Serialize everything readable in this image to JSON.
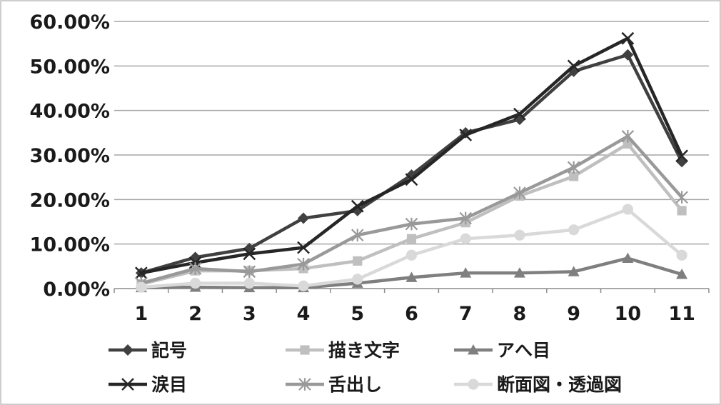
{
  "chart_data": {
    "type": "line",
    "title": "",
    "xlabel": "",
    "ylabel": "",
    "categories": [
      "1",
      "2",
      "3",
      "4",
      "5",
      "6",
      "7",
      "8",
      "9",
      "10",
      "11"
    ],
    "y_ticks": [
      "0.00%",
      "10.00%",
      "20.00%",
      "30.00%",
      "40.00%",
      "50.00%",
      "60.00%"
    ],
    "ylim": [
      0,
      60
    ],
    "grid": true,
    "legend_position": "bottom",
    "series": [
      {
        "name": "記号",
        "marker": "diamond",
        "color": "#404040",
        "values": [
          3.5,
          7.0,
          9.0,
          15.8,
          17.5,
          25.5,
          35.0,
          38.0,
          48.8,
          52.5,
          28.5
        ]
      },
      {
        "name": "描き文字",
        "marker": "square",
        "color": "#bfbfbf",
        "values": [
          1.0,
          4.0,
          4.0,
          4.5,
          6.2,
          11.2,
          14.8,
          20.8,
          25.2,
          32.5,
          17.5
        ]
      },
      {
        "name": "アへ目",
        "marker": "triangle",
        "color": "#7f7f7f",
        "values": [
          0.2,
          0.3,
          0.2,
          0.2,
          1.2,
          2.5,
          3.5,
          3.5,
          3.8,
          6.8,
          3.2
        ]
      },
      {
        "name": "涙目",
        "marker": "x",
        "color": "#262626",
        "values": [
          3.5,
          5.8,
          7.8,
          9.2,
          18.5,
          24.5,
          34.5,
          39.2,
          50.0,
          56.2,
          29.8
        ]
      },
      {
        "name": "舌出し",
        "marker": "star",
        "color": "#999999",
        "values": [
          1.2,
          4.5,
          3.8,
          5.5,
          12.0,
          14.5,
          15.8,
          21.5,
          27.2,
          34.2,
          20.5
        ]
      },
      {
        "name": "断面図・透過図",
        "marker": "circle",
        "color": "#d9d9d9",
        "values": [
          0.3,
          1.2,
          1.2,
          0.6,
          2.1,
          7.5,
          11.2,
          12.0,
          13.2,
          17.8,
          7.5
        ]
      }
    ]
  }
}
